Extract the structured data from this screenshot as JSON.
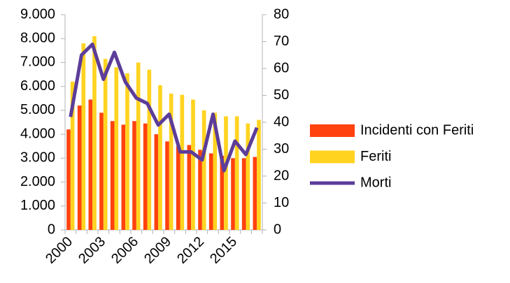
{
  "chart_data": {
    "type": "bar",
    "categories": [
      "2000",
      null,
      null,
      "2003",
      null,
      null,
      "2006",
      null,
      null,
      "2009",
      null,
      null,
      "2012",
      null,
      null,
      "2015",
      null,
      null
    ],
    "series": [
      {
        "name": "Incidenti con Feriti",
        "color": "#ff420e",
        "values": [
          4200,
          5200,
          5450,
          4900,
          4550,
          4400,
          4550,
          4450,
          4000,
          3700,
          3500,
          3550,
          3350,
          3200,
          3100,
          3000,
          3000,
          3050
        ]
      },
      {
        "name": "Feriti",
        "color": "#ffd320",
        "values": [
          6200,
          7800,
          8100,
          7150,
          6800,
          6550,
          7000,
          6700,
          6050,
          5700,
          5650,
          5450,
          5000,
          4900,
          4750,
          4750,
          4450,
          4600
        ]
      },
      {
        "name": "Morti",
        "color": "#5c3d99",
        "type": "line",
        "axis": "y2",
        "values": [
          42,
          65,
          69,
          56,
          66,
          55,
          49,
          47,
          39,
          43,
          29,
          29,
          26,
          43,
          22,
          33,
          28,
          38
        ]
      }
    ],
    "ylim": [
      0,
      9000
    ],
    "yticks": [
      {
        "value": 0,
        "label": "0"
      },
      {
        "value": 1000,
        "label": "1.000"
      },
      {
        "value": 2000,
        "label": "2.000"
      },
      {
        "value": 3000,
        "label": "3.000"
      },
      {
        "value": 4000,
        "label": "4.000"
      },
      {
        "value": 5000,
        "label": "5.000"
      },
      {
        "value": 6000,
        "label": "6.000"
      },
      {
        "value": 7000,
        "label": "7.000"
      },
      {
        "value": 8000,
        "label": "8.000"
      },
      {
        "value": 9000,
        "label": "9.000"
      }
    ],
    "y2lim": [
      0,
      80
    ],
    "y2ticks": [
      0,
      10,
      20,
      30,
      40,
      50,
      60,
      70,
      80
    ],
    "legend": "right"
  }
}
